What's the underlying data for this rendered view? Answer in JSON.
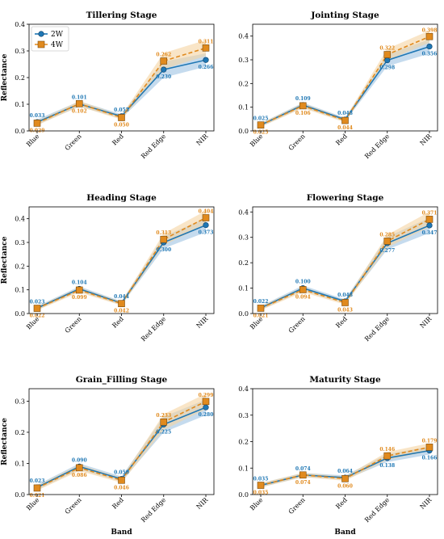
{
  "chart_data": [
    {
      "type": "line",
      "title": "Tillering Stage",
      "xlabel": "",
      "ylabel": "Reflectance",
      "categories": [
        "Blue",
        "Green",
        "Red",
        "Red Edge",
        "NIR"
      ],
      "ylim": [
        0,
        0.4
      ],
      "yticks": [
        "0.0",
        "0.1",
        "0.2",
        "0.3",
        "0.4"
      ],
      "series": [
        {
          "name": "2W",
          "values": [
            0.033,
            0.101,
            0.055,
            0.23,
            0.266
          ],
          "labels": [
            "0.033",
            "0.101",
            "0.055",
            "0.230",
            "0.266"
          ],
          "band": [
            0.01,
            0.01,
            0.008,
            0.03,
            0.025
          ]
        },
        {
          "name": "4W",
          "values": [
            0.029,
            0.102,
            0.05,
            0.262,
            0.311
          ],
          "labels": [
            "0.029",
            "0.102",
            "0.050",
            "0.262",
            "0.311"
          ],
          "band": [
            0.008,
            0.01,
            0.008,
            0.03,
            0.03
          ]
        }
      ],
      "legend": "top-left",
      "grid": false
    },
    {
      "type": "line",
      "title": "Jointing Stage",
      "xlabel": "",
      "ylabel": "",
      "categories": [
        "Blue",
        "Green",
        "Red",
        "Red Edge",
        "NIR"
      ],
      "ylim": [
        0,
        0.45
      ],
      "yticks": [
        "0.0",
        "0.1",
        "0.2",
        "0.3",
        "0.4"
      ],
      "series": [
        {
          "name": "2W",
          "values": [
            0.025,
            0.109,
            0.048,
            0.298,
            0.356
          ],
          "labels": [
            "0.025",
            "0.109",
            "0.048",
            "0.298",
            "0.356"
          ],
          "band": [
            0.008,
            0.01,
            0.008,
            0.025,
            0.03
          ]
        },
        {
          "name": "4W",
          "values": [
            0.025,
            0.106,
            0.044,
            0.322,
            0.398
          ],
          "labels": [
            "0.025",
            "0.106",
            "0.044",
            "0.322",
            "0.398"
          ],
          "band": [
            0.008,
            0.01,
            0.008,
            0.025,
            0.025
          ]
        }
      ],
      "grid": false
    },
    {
      "type": "line",
      "title": "Heading Stage",
      "xlabel": "",
      "ylabel": "Reflectance",
      "categories": [
        "Blue",
        "Green",
        "Red",
        "Red Edge",
        "NIR"
      ],
      "ylim": [
        0,
        0.45
      ],
      "yticks": [
        "0.0",
        "0.1",
        "0.2",
        "0.3",
        "0.4"
      ],
      "series": [
        {
          "name": "2W",
          "values": [
            0.023,
            0.104,
            0.044,
            0.3,
            0.373
          ],
          "labels": [
            "0.023",
            "0.104",
            "0.044",
            "0.300",
            "0.373"
          ],
          "band": [
            0.008,
            0.01,
            0.008,
            0.025,
            0.03
          ]
        },
        {
          "name": "4W",
          "values": [
            0.022,
            0.099,
            0.042,
            0.313,
            0.404
          ],
          "labels": [
            "0.022",
            "0.099",
            "0.042",
            "0.313",
            "0.404"
          ],
          "band": [
            0.008,
            0.01,
            0.008,
            0.025,
            0.03
          ]
        }
      ],
      "grid": false
    },
    {
      "type": "line",
      "title": "Flowering Stage",
      "xlabel": "",
      "ylabel": "",
      "categories": [
        "Blue",
        "Green",
        "Red",
        "Red Edge",
        "NIR"
      ],
      "ylim": [
        0,
        0.42
      ],
      "yticks": [
        "0.0",
        "0.1",
        "0.2",
        "0.3",
        "0.4"
      ],
      "series": [
        {
          "name": "2W",
          "values": [
            0.022,
            0.1,
            0.048,
            0.277,
            0.347
          ],
          "labels": [
            "0.022",
            "0.100",
            "0.048",
            "0.277",
            "0.347"
          ],
          "band": [
            0.008,
            0.01,
            0.008,
            0.025,
            0.03
          ]
        },
        {
          "name": "4W",
          "values": [
            0.021,
            0.094,
            0.043,
            0.285,
            0.371
          ],
          "labels": [
            "0.021",
            "0.094",
            "0.043",
            "0.285",
            "0.371"
          ],
          "band": [
            0.008,
            0.01,
            0.008,
            0.025,
            0.03
          ]
        }
      ],
      "grid": false
    },
    {
      "type": "line",
      "title": "Grain_Filling Stage",
      "xlabel": "Band",
      "ylabel": "Reflectance",
      "categories": [
        "Blue",
        "Green",
        "Red",
        "Red Edge",
        "NIR"
      ],
      "ylim": [
        0,
        0.34
      ],
      "yticks": [
        "0.0",
        "0.1",
        "0.2",
        "0.3"
      ],
      "series": [
        {
          "name": "2W",
          "values": [
            0.023,
            0.09,
            0.05,
            0.225,
            0.28
          ],
          "labels": [
            "0.023",
            "0.090",
            "0.050",
            "0.225",
            "0.280"
          ],
          "band": [
            0.008,
            0.01,
            0.008,
            0.025,
            0.025
          ]
        },
        {
          "name": "4W",
          "values": [
            0.021,
            0.086,
            0.046,
            0.233,
            0.299
          ],
          "labels": [
            "0.021",
            "0.086",
            "0.046",
            "0.233",
            "0.299"
          ],
          "band": [
            0.008,
            0.01,
            0.008,
            0.025,
            0.025
          ]
        }
      ],
      "grid": false
    },
    {
      "type": "line",
      "title": "Maturity Stage",
      "xlabel": "Band",
      "ylabel": "",
      "categories": [
        "Blue",
        "Green",
        "Red",
        "Red Edge",
        "NIR"
      ],
      "ylim": [
        0,
        0.4
      ],
      "yticks": [
        "0.0",
        "0.1",
        "0.2",
        "0.3",
        "0.4"
      ],
      "series": [
        {
          "name": "2W",
          "values": [
            0.035,
            0.074,
            0.064,
            0.138,
            0.166
          ],
          "labels": [
            "0.035",
            "0.074",
            "0.064",
            "0.138",
            "0.166"
          ],
          "band": [
            0.008,
            0.008,
            0.008,
            0.015,
            0.015
          ]
        },
        {
          "name": "4W",
          "values": [
            0.035,
            0.074,
            0.06,
            0.146,
            0.179
          ],
          "labels": [
            "0.035",
            "0.074",
            "0.060",
            "0.146",
            "0.179"
          ],
          "band": [
            0.008,
            0.008,
            0.008,
            0.015,
            0.015
          ]
        }
      ],
      "grid": false
    }
  ],
  "colors": {
    "series_2W": "#1f77b4",
    "series_4W": "#e08a1e",
    "band_2W": "#9ec3e3",
    "band_4W": "#f5d3a2"
  }
}
